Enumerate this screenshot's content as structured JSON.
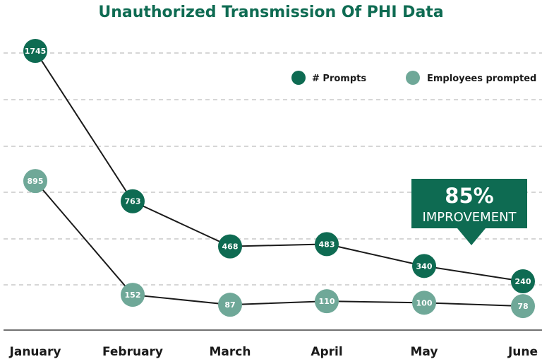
{
  "chart_data": {
    "type": "line",
    "title": "Unauthorized Transmission Of PHI Data",
    "categories": [
      "January",
      "February",
      "March",
      "April",
      "May",
      "June"
    ],
    "series": [
      {
        "name": "# Prompts",
        "color": "#0e6b52",
        "values": [
          1745,
          763,
          468,
          483,
          340,
          240
        ]
      },
      {
        "name": "Employees prompted",
        "color": "#6fa898",
        "values": [
          895,
          152,
          87,
          110,
          100,
          78
        ]
      }
    ],
    "ylim": [
      0,
      2000
    ],
    "grid": true,
    "legend": "top-right",
    "annotation": {
      "value": "85%",
      "text": "IMPROVEMENT",
      "color": "#0e6b52"
    }
  }
}
